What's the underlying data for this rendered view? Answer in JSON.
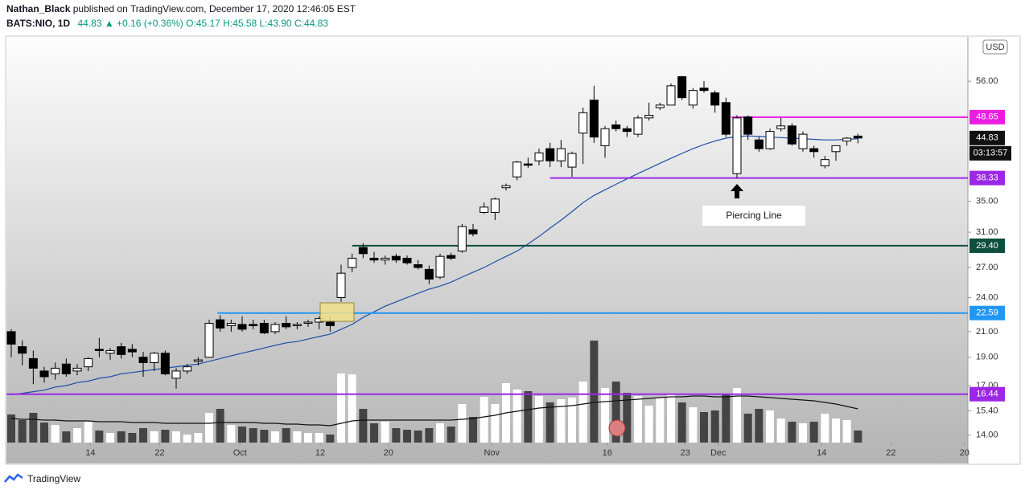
{
  "header": {
    "author": "Nathan_Black",
    "published": "published on TradingView.com, December 17, 2020 12:46:05 EST",
    "symbol": "BATS:NIO, 1D",
    "last": "44.83",
    "change": "▲ +0.16 (+0.36%)",
    "open": "O:45.17",
    "high": "H:45.58",
    "low": "L:43.90",
    "close": "C:44.83"
  },
  "chart_data": {
    "type": "candlestick",
    "log_scale": true,
    "currency": "USD",
    "open": [
      21.0,
      19.8,
      18.9,
      18.0,
      17.8,
      18.5,
      18.0,
      18.3,
      19.6,
      19.3,
      19.8,
      19.6,
      19.0,
      18.6,
      19.3,
      17.5,
      18.0,
      18.7,
      19.0,
      22.0,
      21.5,
      21.6,
      21.6,
      21.7,
      21.0,
      21.7,
      21.5,
      21.7,
      21.8,
      21.8,
      24.0,
      27.0,
      29.2,
      28.0,
      27.8,
      28.2,
      28.0,
      27.3,
      26.8,
      26.0,
      28.3,
      28.8,
      31.3,
      33.5,
      33.5,
      36.9,
      38.5,
      40.5,
      41.0,
      43.0,
      41.0,
      40.0,
      45.7,
      52.0,
      43.5,
      47.2,
      46.5,
      45.5,
      48.5,
      50.5,
      51.0,
      57.0,
      51.0,
      54.5,
      53.5,
      51.5,
      39.0,
      48.7,
      44.5,
      43.0,
      46.5,
      47.0,
      43.0,
      43.0,
      40.2,
      42.5,
      44.3,
      45.17
    ],
    "high": [
      21.2,
      20.3,
      19.5,
      18.3,
      18.6,
      18.9,
      18.5,
      19.0,
      20.5,
      19.7,
      20.1,
      20.0,
      19.4,
      19.4,
      19.5,
      18.2,
      18.5,
      19.0,
      22.0,
      22.4,
      22.0,
      22.3,
      22.0,
      22.0,
      21.8,
      22.3,
      21.8,
      22.0,
      22.3,
      22.3,
      27.3,
      28.5,
      29.7,
      28.7,
      28.3,
      28.5,
      28.3,
      27.8,
      27.2,
      28.5,
      28.6,
      32.0,
      32.0,
      34.8,
      35.5,
      37.5,
      41.0,
      41.5,
      43.0,
      44.0,
      44.5,
      42.5,
      50.5,
      55.0,
      47.0,
      48.0,
      47.0,
      49.0,
      51.5,
      51.5,
      55.5,
      57.2,
      54.5,
      56.0,
      54.0,
      52.5,
      49.0,
      49.0,
      45.0,
      46.5,
      48.5,
      47.5,
      46.0,
      43.5,
      41.8,
      43.5,
      45.0,
      45.58
    ],
    "low": [
      19.0,
      18.4,
      17.1,
      17.2,
      17.4,
      17.6,
      17.7,
      18.0,
      19.0,
      18.8,
      18.9,
      19.0,
      17.6,
      18.0,
      17.7,
      16.8,
      17.8,
      18.4,
      19.0,
      21.0,
      21.0,
      21.0,
      21.2,
      20.8,
      20.8,
      21.2,
      21.2,
      21.4,
      21.2,
      21.0,
      23.6,
      26.5,
      28.0,
      27.5,
      27.3,
      27.5,
      27.3,
      26.8,
      25.3,
      25.8,
      27.8,
      28.6,
      30.5,
      33.3,
      32.5,
      36.5,
      38.0,
      39.9,
      40.3,
      40.0,
      40.0,
      38.5,
      40.5,
      44.0,
      41.5,
      46.0,
      45.0,
      45.0,
      48.0,
      50.0,
      51.0,
      52.0,
      50.3,
      53.5,
      49.5,
      45.0,
      38.3,
      44.5,
      42.5,
      42.8,
      46.0,
      43.5,
      42.5,
      41.5,
      39.8,
      41.0,
      43.5,
      43.9
    ],
    "close": [
      20.0,
      19.3,
      18.2,
      17.6,
      18.2,
      17.8,
      18.2,
      18.9,
      19.5,
      19.5,
      19.2,
      19.4,
      18.6,
      19.3,
      17.8,
      18.0,
      18.3,
      18.8,
      21.7,
      21.3,
      21.7,
      21.2,
      21.5,
      20.9,
      21.6,
      21.4,
      21.6,
      21.8,
      22.1,
      21.5,
      26.4,
      28.0,
      28.5,
      27.8,
      28.0,
      27.8,
      27.5,
      27.0,
      25.8,
      28.2,
      28.0,
      31.7,
      30.8,
      34.2,
      35.3,
      37.2,
      40.8,
      40.3,
      42.3,
      41.0,
      43.0,
      42.2,
      49.5,
      45.0,
      46.5,
      46.5,
      46.0,
      48.5,
      49.0,
      51.0,
      55.0,
      52.5,
      54.0,
      54.0,
      51.0,
      45.5,
      48.5,
      45.5,
      43.0,
      46.0,
      47.0,
      43.8,
      45.5,
      42.5,
      41.2,
      43.5,
      44.8,
      44.83
    ],
    "ma": [
      16.4,
      16.5,
      16.6,
      16.7,
      16.9,
      17.0,
      17.2,
      17.3,
      17.5,
      17.6,
      17.8,
      17.9,
      18.0,
      18.1,
      18.2,
      18.3,
      18.4,
      18.5,
      18.7,
      18.9,
      19.1,
      19.3,
      19.5,
      19.7,
      19.9,
      20.1,
      20.2,
      20.4,
      20.6,
      20.8,
      21.2,
      21.6,
      22.2,
      22.7,
      23.2,
      23.6,
      24.0,
      24.4,
      24.8,
      25.1,
      25.5,
      26.0,
      26.5,
      27.0,
      27.6,
      28.2,
      28.8,
      29.6,
      30.5,
      31.5,
      32.5,
      33.6,
      34.8,
      35.8,
      36.6,
      37.4,
      38.2,
      39.0,
      39.8,
      40.6,
      41.4,
      42.2,
      43.0,
      43.7,
      44.3,
      44.8,
      45.1,
      45.2,
      45.1,
      45.0,
      44.9,
      44.8,
      44.7,
      44.6,
      44.5,
      44.5,
      44.6,
      44.7
    ],
    "volume": [
      35,
      28,
      37,
      25,
      22,
      14,
      18,
      26,
      15,
      12,
      14,
      12,
      18,
      14,
      16,
      14,
      10,
      12,
      37,
      42,
      22,
      20,
      18,
      16,
      14,
      18,
      14,
      12,
      12,
      10,
      86,
      85,
      42,
      24,
      26,
      18,
      16,
      15,
      18,
      24,
      20,
      48,
      32,
      57,
      48,
      74,
      66,
      64,
      58,
      50,
      54,
      56,
      76,
      127,
      68,
      76,
      62,
      58,
      46,
      56,
      60,
      50,
      44,
      38,
      40,
      60,
      68,
      36,
      42,
      40,
      30,
      26,
      24,
      26,
      36,
      30,
      28,
      15
    ],
    "volume_ma": [
      30,
      29,
      29,
      28,
      28,
      27,
      27,
      27,
      26,
      26,
      26,
      25,
      25,
      25,
      24,
      24,
      24,
      24,
      24,
      25,
      25,
      25,
      25,
      24,
      24,
      23,
      23,
      22,
      22,
      21,
      24,
      27,
      28,
      28,
      28,
      28,
      28,
      28,
      28,
      28,
      28,
      29,
      30,
      32,
      34,
      37,
      39,
      41,
      43,
      44,
      45,
      46,
      48,
      50,
      51,
      52,
      53,
      54,
      55,
      56,
      57,
      57,
      58,
      58,
      57,
      57,
      58,
      58,
      57,
      56,
      55,
      54,
      53,
      52,
      50,
      48,
      45,
      42
    ],
    "xlim": [
      -0.44,
      87
    ],
    "xticks": [
      {
        "value": 7.2,
        "label": "14"
      },
      {
        "value": 13.5,
        "label": "22"
      },
      {
        "value": 20.8,
        "label": "Oct"
      },
      {
        "value": 28.1,
        "label": "12"
      },
      {
        "value": 34.3,
        "label": "20"
      },
      {
        "value": 43.7,
        "label": "Nov"
      },
      {
        "value": 54.2,
        "label": "16"
      },
      {
        "value": 61.3,
        "label": "23"
      },
      {
        "value": 64.3,
        "label": "Dec"
      },
      {
        "value": 73.7,
        "label": "14"
      },
      {
        "value": 80,
        "label": "22"
      },
      {
        "value": 86.7,
        "label": "20"
      }
    ],
    "ylim": [
      13.6,
      66.6
    ],
    "yticks": [
      {
        "value": 14,
        "label": "14.00"
      },
      {
        "value": 15.4,
        "label": "15.40"
      },
      {
        "value": 17,
        "label": "17.00"
      },
      {
        "value": 19,
        "label": "19.00"
      },
      {
        "value": 21,
        "label": "21.00"
      },
      {
        "value": 24,
        "label": "24.00"
      },
      {
        "value": 27,
        "label": "27.00"
      },
      {
        "value": 31,
        "label": "31.00"
      },
      {
        "value": 35,
        "label": "35.00"
      },
      {
        "value": 56,
        "label": "56.00"
      }
    ],
    "levels": [
      {
        "value": 48.65,
        "label": "48.65",
        "color": "#e91ee0",
        "from": 65.5
      },
      {
        "value": 38.33,
        "label": "38.33",
        "color": "#9c27e6",
        "from": 49
      },
      {
        "value": 29.4,
        "label": "29.40",
        "color": "#0b4f3c",
        "from": 31
      },
      {
        "value": 22.59,
        "label": "22.59",
        "color": "#2196f3",
        "from": 18.75
      },
      {
        "value": 16.44,
        "label": "16.44",
        "color": "#9c27e6",
        "from": -0.44
      }
    ],
    "last_price": {
      "value": 44.83,
      "label": "44.83"
    },
    "countdown": "03:13:57",
    "annotation": {
      "text": "Piercing Line",
      "x": 66
    }
  },
  "footer": {
    "brand": "TradingView"
  }
}
